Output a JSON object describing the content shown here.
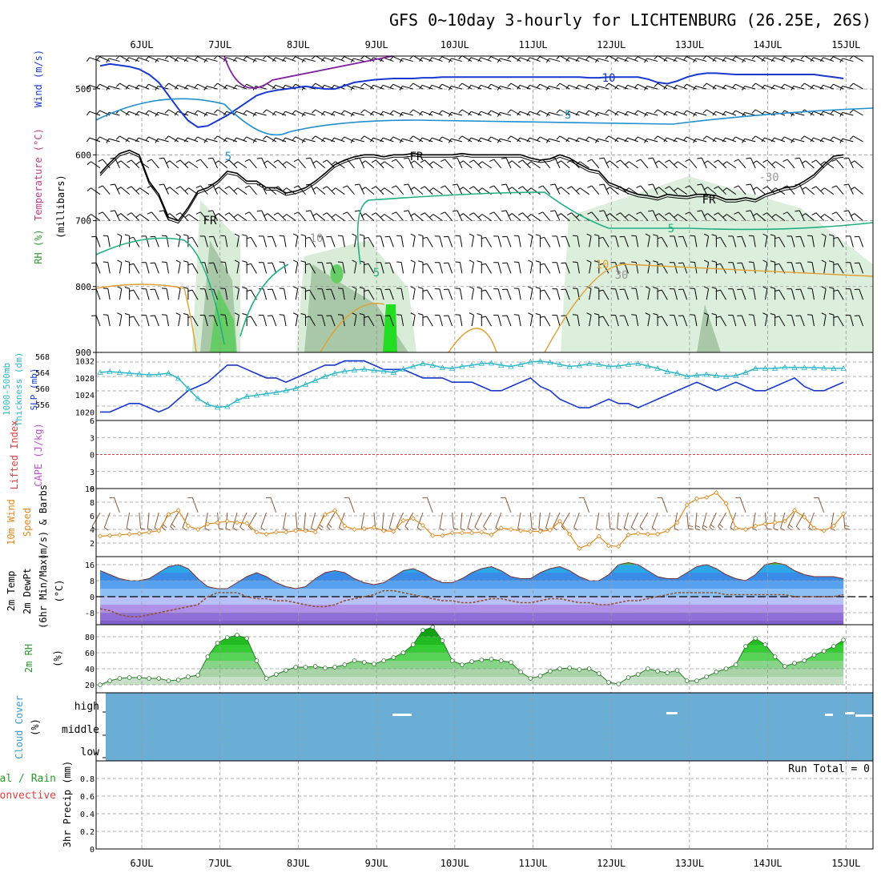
{
  "title": "GFS 0~10day 3-hourly for LICHTENBURG (26.25E, 26S)",
  "days": [
    "6JUL",
    "7JUL",
    "8JUL",
    "9JUL",
    "10JUL",
    "11JUL",
    "12JUL",
    "13JUL",
    "14JUL",
    "15JUL"
  ],
  "colors": {
    "sfc_pressure_line": "#1838d0",
    "thickness_line": "#30b8c8",
    "wind_line": "#e08a20",
    "temp_fill": "#2fc82f",
    "dewpoint_line": "#905030",
    "rh_fill": "#33cc33",
    "cloud": "#6aaed6",
    "lifted_index": "#e04040",
    "cape": "#c050d0",
    "isotach": "#1838d0",
    "freezing": "#000000",
    "rh_shade": "#d8ecd8"
  },
  "chart_data": [
    {
      "type": "heatmap",
      "panel": "upper-air",
      "ylabel_words": [
        "Wind (m/s)",
        "Temperature (°C)",
        "RH (%)",
        "(millibars)"
      ],
      "yticks": [
        500,
        600,
        700,
        800,
        900
      ],
      "ylim": [
        450,
        900
      ],
      "contour_labels": [
        "10",
        "-5",
        "5",
        "FR",
        "FR",
        "FR",
        "5",
        "10",
        "5",
        "-30",
        "10",
        "30"
      ],
      "freezing_level_mb": [
        628,
        612,
        598,
        593,
        600,
        640,
        660,
        695,
        700,
        680,
        655,
        650,
        640,
        625,
        628,
        640,
        640,
        650,
        650,
        658,
        655,
        650,
        640,
        628,
        615,
        608,
        603,
        600,
        600,
        603,
        600,
        600,
        598,
        600,
        600,
        600,
        600,
        598,
        600,
        600,
        600,
        600,
        600,
        600,
        605,
        608,
        606,
        600,
        605,
        614,
        622,
        625,
        642,
        648,
        655,
        660,
        662,
        665,
        660,
        662,
        663,
        660,
        660,
        662,
        668,
        668,
        665,
        668,
        660,
        655,
        650,
        648,
        640,
        630,
        615,
        602,
        600
      ],
      "isotach_10_mb": [
        465,
        462,
        464,
        466,
        470,
        478,
        490,
        510,
        530,
        548,
        558,
        556,
        548,
        540,
        530,
        520,
        510,
        505,
        502,
        500,
        498,
        496,
        498,
        500,
        500,
        495,
        490,
        488,
        486,
        485,
        484,
        484,
        484,
        483,
        483,
        482,
        482,
        482,
        482,
        482,
        482,
        482,
        482,
        482,
        482,
        482,
        482,
        482,
        482,
        482,
        483,
        483,
        482,
        482,
        482,
        482,
        485,
        490,
        492,
        488,
        482,
        478,
        476,
        476,
        477,
        478,
        478,
        478,
        478,
        478,
        478,
        478,
        478,
        478,
        480,
        482,
        484
      ]
    },
    {
      "type": "line",
      "panel": "pressure",
      "ylabel_words": [
        "1000-500mb",
        "Thickness (dm)",
        "SLP (mb)"
      ],
      "left_ticks": [
        556,
        560,
        564,
        568
      ],
      "right_ticks": [
        1020,
        1024,
        1028,
        1032
      ],
      "series": [
        {
          "name": "SLP (mb)",
          "axis": "right",
          "ylim": [
            1018,
            1034
          ],
          "values": [
            1020,
            1020,
            1021,
            1022,
            1022,
            1021,
            1020,
            1021,
            1023,
            1025,
            1026,
            1027,
            1029,
            1031,
            1031,
            1030,
            1029,
            1028,
            1028,
            1027,
            1028,
            1029,
            1030,
            1031,
            1031,
            1032,
            1032,
            1032,
            1031,
            1030,
            1030,
            1030,
            1029,
            1028,
            1028,
            1028,
            1027,
            1027,
            1027,
            1026,
            1025,
            1025,
            1026,
            1027,
            1028,
            1026,
            1025,
            1023,
            1022,
            1021,
            1021,
            1022,
            1023,
            1022,
            1022,
            1021,
            1022,
            1023,
            1024,
            1025,
            1026,
            1027,
            1026,
            1025,
            1026,
            1027,
            1026,
            1025,
            1025,
            1026,
            1027,
            1028,
            1026,
            1025,
            1025,
            1026,
            1027
          ]
        },
        {
          "name": "1000-500mb Thickness (dm)",
          "axis": "left",
          "ylim": [
            552,
            569
          ],
          "values": [
            564,
            564.2,
            564,
            563.8,
            563.6,
            563.4,
            563.5,
            563.8,
            562.5,
            560,
            557.5,
            556,
            555.3,
            555.5,
            557,
            558,
            558.3,
            558.7,
            559,
            559.5,
            560,
            561,
            562,
            563,
            563.8,
            564.3,
            564.6,
            564.8,
            564.5,
            564.3,
            564,
            564.8,
            565.5,
            566.2,
            565.8,
            565.2,
            565,
            565.5,
            565.8,
            566.2,
            566.3,
            565.8,
            565.5,
            566,
            566.6,
            566.8,
            566.5,
            566,
            565.5,
            565.7,
            566.2,
            566,
            565.5,
            565.6,
            566,
            566.2,
            565.6,
            565,
            564.2,
            563.8,
            563,
            563.3,
            563.5,
            563.2,
            563,
            563.2,
            564,
            565,
            565,
            565,
            565.3,
            565.2,
            565.2,
            565.2,
            565.1,
            565,
            565
          ]
        }
      ]
    },
    {
      "type": "line",
      "panel": "stability",
      "ylabel_words": [
        "Lifted Index",
        "CAPE (J/kg)"
      ],
      "yticks": [
        -6,
        -3,
        0,
        3,
        6
      ],
      "ylim": [
        -6,
        6
      ],
      "reference_line": 0
    },
    {
      "type": "line",
      "panel": "wind",
      "ylabel_words": [
        "10m Wind",
        "Speed",
        "(m/s) & Barbs"
      ],
      "yticks": [
        2,
        4,
        6,
        8,
        10
      ],
      "ylim": [
        0,
        10
      ],
      "series": [
        {
          "name": "10m Wind Speed (m/s)",
          "values": [
            3.0,
            3.1,
            3.2,
            3.3,
            3.4,
            3.6,
            3.8,
            6.2,
            6.8,
            4.5,
            4.0,
            4.8,
            5.0,
            5.2,
            5.0,
            4.9,
            3.6,
            3.3,
            3.6,
            3.6,
            3.8,
            3.8,
            3.6,
            6.2,
            6.8,
            4.5,
            4.0,
            4.1,
            4.3,
            3.8,
            3.7,
            5.3,
            5.6,
            4.6,
            3.1,
            3.1,
            3.5,
            3.5,
            3.5,
            3.6,
            3.2,
            4.2,
            4.0,
            3.8,
            3.7,
            3.7,
            3.9,
            5.2,
            3.3,
            1.2,
            1.8,
            3.0,
            1.6,
            1.5,
            3.2,
            3.4,
            3.3,
            3.3,
            3.8,
            5.0,
            7.6,
            8.5,
            8.7,
            9.4,
            7.8,
            4.2,
            4.0,
            4.5,
            4.8,
            5.0,
            5.2,
            6.8,
            5.8,
            4.2,
            3.8,
            4.5,
            6.3
          ]
        }
      ]
    },
    {
      "type": "area",
      "panel": "temperature",
      "ylabel_words": [
        "2m Temp",
        "2m DewPt",
        "(6hr Min/Max)",
        "(°C)"
      ],
      "yticks": [
        -8,
        0,
        8,
        16
      ],
      "ylim": [
        -14,
        20
      ],
      "series": [
        {
          "name": "2m Temp",
          "values": [
            13,
            11,
            9,
            8,
            8,
            9,
            12,
            15,
            16,
            14,
            9,
            5,
            4,
            4,
            7,
            10,
            12,
            10,
            7,
            5,
            4,
            5,
            9,
            12,
            13,
            12,
            9,
            7,
            6,
            7,
            10,
            13,
            14,
            12,
            9,
            7,
            7,
            9,
            12,
            14,
            15,
            13,
            10,
            9,
            9,
            12,
            14,
            15,
            13,
            10,
            8,
            8,
            11,
            16,
            17,
            16,
            13,
            10,
            9,
            9,
            12,
            15,
            16,
            14,
            11,
            9,
            8,
            11,
            16,
            17,
            16,
            13,
            11,
            10,
            10,
            10,
            9
          ]
        },
        {
          "name": "2m DewPt",
          "values": [
            -6,
            -7,
            -9,
            -10,
            -10,
            -9,
            -8,
            -7,
            -6,
            -5,
            -4,
            0,
            2,
            2,
            2,
            0,
            -1,
            -1,
            -2,
            -2,
            -3,
            -4,
            -5,
            -5,
            -4,
            -2,
            -1,
            0,
            1,
            3,
            3,
            2,
            1,
            0,
            -1,
            -2,
            -2,
            -3,
            -3,
            -2,
            -1,
            -1,
            -2,
            -3,
            -3,
            -2,
            -1,
            -1,
            -2,
            -3,
            -3,
            -4,
            -4,
            -3,
            -2,
            -2,
            -1,
            0,
            1,
            2,
            2,
            2,
            2,
            2,
            1,
            1,
            1,
            1,
            1,
            1,
            1,
            0,
            0,
            0,
            0,
            0,
            1
          ]
        }
      ]
    },
    {
      "type": "area",
      "panel": "rh",
      "ylabel_words": [
        "2m RH",
        "(%)"
      ],
      "yticks": [
        20,
        40,
        60,
        80
      ],
      "ylim": [
        10,
        95
      ],
      "series": [
        {
          "name": "2m RH (%)",
          "values": [
            20,
            25,
            28,
            29,
            29,
            28,
            28,
            25,
            26,
            30,
            32,
            55,
            72,
            79,
            82,
            78,
            50,
            28,
            33,
            38,
            42,
            42,
            43,
            41,
            42,
            45,
            50,
            48,
            46,
            50,
            54,
            60,
            70,
            88,
            92,
            75,
            50,
            45,
            49,
            51,
            52,
            50,
            48,
            36,
            28,
            31,
            37,
            40,
            41,
            39,
            40,
            34,
            23,
            21,
            29,
            33,
            40,
            37,
            35,
            38,
            25,
            25,
            30,
            36,
            40,
            45,
            68,
            78,
            70,
            55,
            43,
            47,
            50,
            57,
            62,
            68,
            76
          ]
        }
      ]
    },
    {
      "type": "heatmap",
      "panel": "cloud",
      "ylabel_words": [
        "Cloud Cover",
        "(%)"
      ],
      "levels": [
        "high",
        "middle",
        "low"
      ]
    },
    {
      "type": "bar",
      "panel": "precip",
      "ylabel_words": [
        "Total / Rain",
        "Convective",
        "3hr Precip (mm)"
      ],
      "yticks": [
        0,
        0.2,
        0.4,
        0.6,
        0.8
      ],
      "ylim": [
        0,
        1
      ],
      "run_total_label": "Run Total = 0",
      "values": []
    }
  ]
}
